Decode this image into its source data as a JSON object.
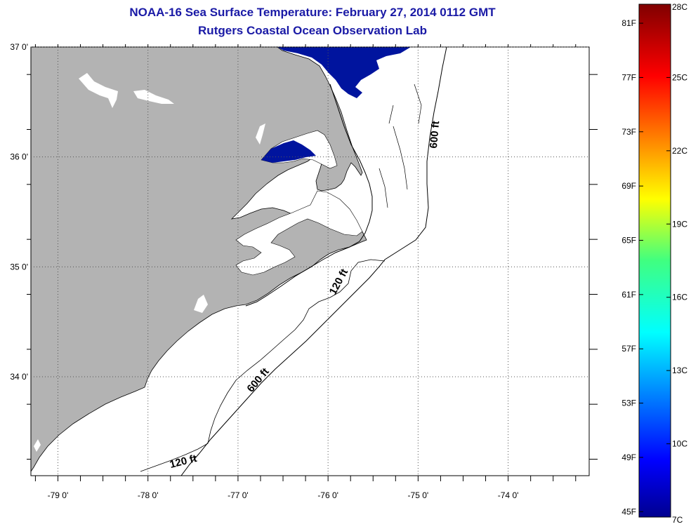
{
  "header": {
    "title": "NOAA-16 Sea Surface Temperature:  February 27, 2014 0112 GMT",
    "subtitle": "Rutgers Coastal Ocean Observation Lab"
  },
  "map": {
    "lon_range": [
      -79.3,
      -73.1
    ],
    "lat_range": [
      33.1,
      37.0
    ],
    "lat_ticks": [
      {
        "value": 37.0,
        "label": "37 0'"
      },
      {
        "value": 36.0,
        "label": "36 0'"
      },
      {
        "value": 35.0,
        "label": "35 0'"
      },
      {
        "value": 34.0,
        "label": "34 0'"
      }
    ],
    "lon_ticks": [
      {
        "value": -79.0,
        "label": "-79 0'"
      },
      {
        "value": -78.0,
        "label": "-78 0'"
      },
      {
        "value": -77.0,
        "label": "-77 0'"
      },
      {
        "value": -76.0,
        "label": "-76 0'"
      },
      {
        "value": -75.0,
        "label": "-75 0'"
      },
      {
        "value": -74.0,
        "label": "-74 0'"
      }
    ],
    "contour_labels": [
      {
        "text": "600 ft",
        "lon": -74.78,
        "lat": 36.2,
        "angle": -85
      },
      {
        "text": "120 ft",
        "lon": -75.85,
        "lat": 34.85,
        "angle": -62
      },
      {
        "text": "600 ft",
        "lon": -76.75,
        "lat": 33.95,
        "angle": -50
      },
      {
        "text": "120 ft",
        "lon": -77.6,
        "lat": 33.2,
        "angle": -14
      }
    ],
    "colors": {
      "land": "#b3b3b3",
      "water": "#ffffff",
      "cold_sst": "#00149e",
      "frame": "#000000"
    }
  },
  "colorbar": {
    "min_c": 7,
    "max_c": 28,
    "celsius_labels": [
      "28C",
      "25C",
      "22C",
      "19C",
      "16C",
      "13C",
      "10C",
      "7C"
    ],
    "fahrenheit_labels": [
      "81F",
      "77F",
      "73F",
      "69F",
      "65F",
      "61F",
      "57F",
      "53F",
      "49F",
      "45F"
    ]
  }
}
